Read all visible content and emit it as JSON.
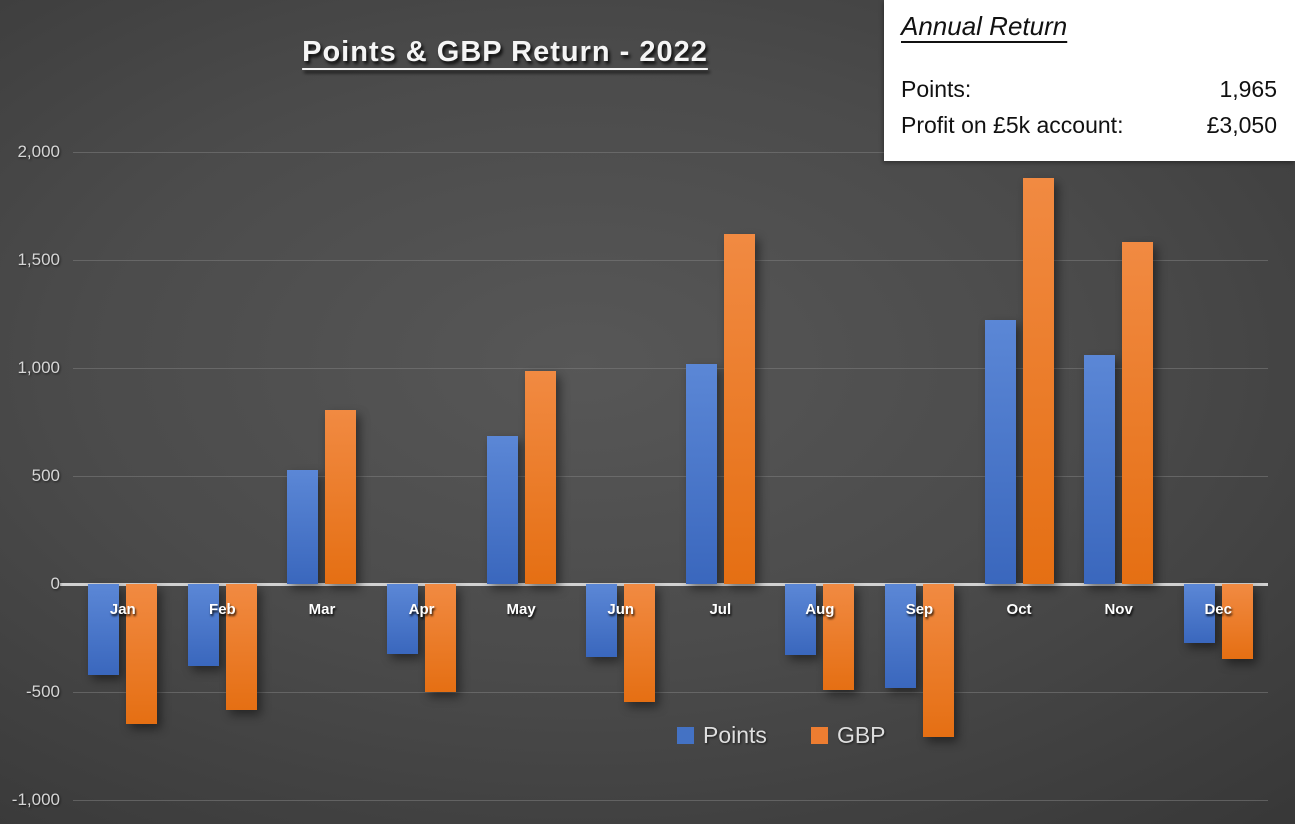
{
  "title": "Points & GBP Return - 2022",
  "annual_return": {
    "heading": "Annual Return",
    "rows": [
      {
        "label": "Points:",
        "value": "1,965"
      },
      {
        "label": "Profit on £5k account:",
        "value": "£3,050"
      }
    ]
  },
  "chart_data": {
    "type": "bar",
    "title": "Points & GBP Return - 2022",
    "categories": [
      "Jan",
      "Feb",
      "Mar",
      "Apr",
      "May",
      "Jun",
      "Jul",
      "Aug",
      "Sep",
      "Oct",
      "Nov",
      "Dec"
    ],
    "series": [
      {
        "name": "Points",
        "color": "#4472C4",
        "color_light": "#5b87d6",
        "color_dark": "#3a67bd",
        "values": [
          -420,
          -380,
          530,
          -325,
          685,
          -340,
          1020,
          -330,
          -480,
          1220,
          1060,
          -275
        ]
      },
      {
        "name": "GBP",
        "color": "#ED7D31",
        "color_light": "#f18a42",
        "color_dark": "#e56f13",
        "values": [
          -650,
          -585,
          805,
          -500,
          985,
          -545,
          1620,
          -490,
          -710,
          1880,
          1585,
          -345
        ]
      }
    ],
    "ylim": [
      -1000,
      2000
    ],
    "ytick_step": 500,
    "ytick_labels": [
      "2,000",
      "1,500",
      "1,000",
      "500",
      "0",
      "-500",
      "-1,000"
    ],
    "grid": true,
    "legend": [
      {
        "label": "Points",
        "color": "#4472C4"
      },
      {
        "label": "GBP",
        "color": "#ED7D31"
      }
    ],
    "legend_position": "inside-bottom-center"
  },
  "colors": {
    "background_center": "#575757",
    "background_edge": "#262626",
    "gridline": "#7d7d7d",
    "axis_line": "#d9d9d9",
    "tick_label": "#d6d6d6",
    "month_label": "#ffffff",
    "points_blue": "#4472C4",
    "gbp_orange": "#ED7D31",
    "panel_bg": "#ffffff",
    "panel_text": "#111111"
  }
}
